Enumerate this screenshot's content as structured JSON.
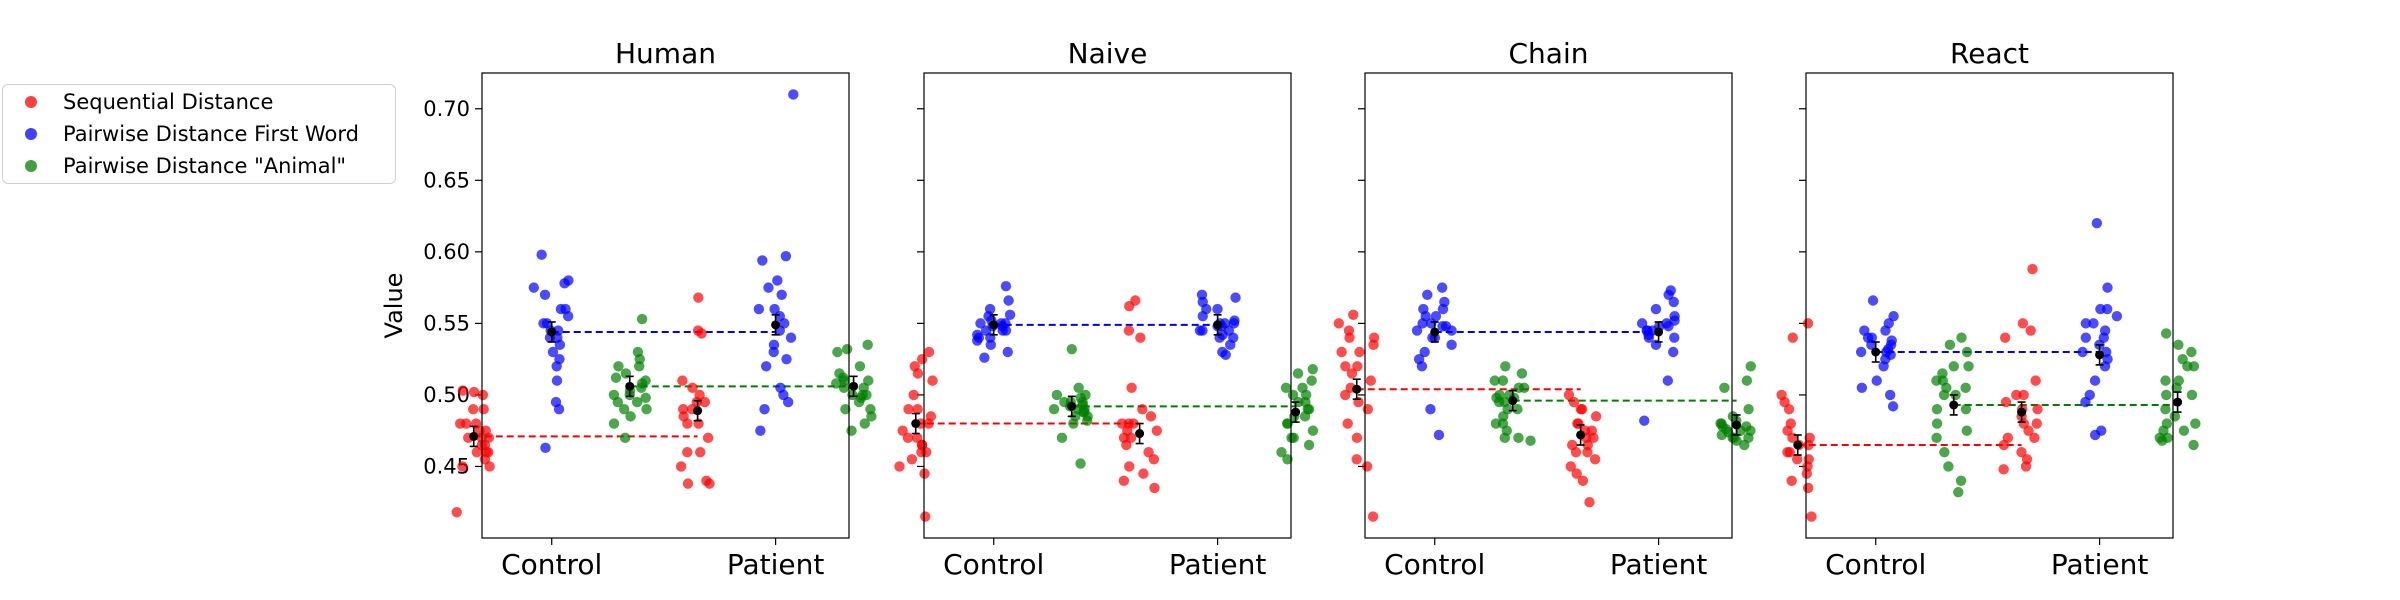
{
  "chart_data": [
    {
      "type": "scatter",
      "title": "Human",
      "ylabel": "Value",
      "categories": [
        "Control",
        "Patient"
      ],
      "ylim": [
        0.4,
        0.725
      ],
      "yticks": [
        "0.45",
        "0.50",
        "0.55",
        "0.60",
        "0.65",
        "0.70"
      ],
      "series": [
        {
          "name": "Sequential Distance",
          "color": "#ff0000",
          "values": [
            [
              0.5,
              0.503,
              0.48,
              0.49,
              0.47,
              0.46,
              0.475,
              0.455,
              0.465,
              0.45,
              0.46,
              0.48,
              0.47,
              0.418,
              0.45,
              0.47,
              0.48,
              0.465,
              0.49,
              0.502,
              0.46,
              0.475
            ],
            [
              0.568,
              0.543,
              0.545,
              0.51,
              0.505,
              0.49,
              0.48,
              0.495,
              0.485,
              0.47,
              0.46,
              0.45,
              0.44,
              0.438,
              0.438,
              0.46,
              0.5,
              0.49,
              0.495,
              0.48
            ]
          ]
        },
        {
          "name": "Pairwise Distance First Word",
          "color": "#0000ff",
          "values": [
            [
              0.598,
              0.58,
              0.575,
              0.57,
              0.56,
              0.555,
              0.55,
              0.545,
              0.54,
              0.535,
              0.53,
              0.525,
              0.51,
              0.495,
              0.49,
              0.463,
              0.54,
              0.55,
              0.56,
              0.578,
              0.545,
              0.52
            ],
            [
              0.71,
              0.597,
              0.594,
              0.58,
              0.575,
              0.57,
              0.56,
              0.55,
              0.54,
              0.535,
              0.53,
              0.525,
              0.52,
              0.505,
              0.5,
              0.495,
              0.49,
              0.475,
              0.56,
              0.545,
              0.555
            ]
          ]
        },
        {
          "name": "Pairwise Distance \"Animal\"",
          "color": "#008000",
          "values": [
            [
              0.553,
              0.53,
              0.525,
              0.52,
              0.515,
              0.51,
              0.505,
              0.5,
              0.495,
              0.49,
              0.485,
              0.48,
              0.47,
              0.498,
              0.503,
              0.512,
              0.508,
              0.52,
              0.495,
              0.5,
              0.49
            ],
            [
              0.535,
              0.532,
              0.53,
              0.52,
              0.515,
              0.51,
              0.505,
              0.5,
              0.495,
              0.49,
              0.485,
              0.48,
              0.475,
              0.5,
              0.508,
              0.512,
              0.49,
              0.5,
              0.505,
              0.51,
              0.498
            ]
          ]
        }
      ],
      "means": [
        [
          0.471,
          0.489
        ],
        [
          0.544,
          0.549
        ],
        [
          0.506,
          0.506
        ]
      ],
      "reference_lines": [
        0.471,
        0.544,
        0.506
      ]
    },
    {
      "type": "scatter",
      "title": "Naive",
      "ylabel": "",
      "categories": [
        "Control",
        "Patient"
      ],
      "ylim": [
        0.4,
        0.725
      ],
      "series": [
        {
          "name": "Sequential Distance",
          "color": "#ff0000",
          "values": [
            [
              0.53,
              0.525,
              0.52,
              0.515,
              0.51,
              0.5,
              0.49,
              0.485,
              0.48,
              0.475,
              0.47,
              0.465,
              0.46,
              0.455,
              0.45,
              0.445,
              0.415,
              0.48,
              0.49,
              0.47,
              0.465,
              0.46
            ],
            [
              0.566,
              0.562,
              0.545,
              0.54,
              0.505,
              0.49,
              0.485,
              0.48,
              0.475,
              0.47,
              0.465,
              0.46,
              0.455,
              0.45,
              0.445,
              0.44,
              0.435,
              0.48,
              0.47,
              0.475,
              0.48
            ]
          ]
        },
        {
          "name": "Pairwise Distance First Word",
          "color": "#0000ff",
          "values": [
            [
              0.576,
              0.566,
              0.56,
              0.555,
              0.55,
              0.548,
              0.545,
              0.542,
              0.54,
              0.538,
              0.535,
              0.53,
              0.526,
              0.55,
              0.556,
              0.545,
              0.548,
              0.552,
              0.54,
              0.55,
              0.545
            ],
            [
              0.57,
              0.568,
              0.565,
              0.56,
              0.555,
              0.55,
              0.548,
              0.545,
              0.542,
              0.54,
              0.535,
              0.53,
              0.528,
              0.55,
              0.545,
              0.56,
              0.552,
              0.548,
              0.54,
              0.545,
              0.55
            ]
          ]
        },
        {
          "name": "Pairwise Distance \"Animal\"",
          "color": "#008000",
          "values": [
            [
              0.532,
              0.505,
              0.5,
              0.498,
              0.495,
              0.493,
              0.49,
              0.488,
              0.485,
              0.482,
              0.48,
              0.47,
              0.452,
              0.495,
              0.49,
              0.5,
              0.485,
              0.492,
              0.488,
              0.49,
              0.495
            ],
            [
              0.518,
              0.515,
              0.51,
              0.505,
              0.5,
              0.495,
              0.49,
              0.485,
              0.48,
              0.475,
              0.47,
              0.465,
              0.46,
              0.455,
              0.5,
              0.49,
              0.485,
              0.48,
              0.47,
              0.495,
              0.505
            ]
          ]
        }
      ],
      "means": [
        [
          0.48,
          0.473
        ],
        [
          0.549,
          0.549
        ],
        [
          0.492,
          0.488
        ]
      ],
      "reference_lines": [
        0.48,
        0.549,
        0.492
      ]
    },
    {
      "type": "scatter",
      "title": "Chain",
      "ylabel": "",
      "categories": [
        "Control",
        "Patient"
      ],
      "ylim": [
        0.4,
        0.725
      ],
      "series": [
        {
          "name": "Sequential Distance",
          "color": "#ff0000",
          "values": [
            [
              0.556,
              0.55,
              0.545,
              0.54,
              0.535,
              0.53,
              0.52,
              0.51,
              0.5,
              0.49,
              0.48,
              0.47,
              0.455,
              0.45,
              0.415,
              0.52,
              0.515,
              0.505,
              0.53,
              0.54,
              0.495
            ],
            [
              0.5,
              0.495,
              0.49,
              0.485,
              0.48,
              0.475,
              0.47,
              0.465,
              0.46,
              0.455,
              0.45,
              0.445,
              0.44,
              0.425,
              0.48,
              0.47,
              0.475,
              0.46,
              0.49,
              0.465
            ]
          ]
        },
        {
          "name": "Pairwise Distance First Word",
          "color": "#0000ff",
          "values": [
            [
              0.575,
              0.57,
              0.565,
              0.56,
              0.555,
              0.55,
              0.548,
              0.545,
              0.54,
              0.535,
              0.53,
              0.525,
              0.52,
              0.49,
              0.472,
              0.545,
              0.55,
              0.56,
              0.54,
              0.548,
              0.555
            ],
            [
              0.573,
              0.57,
              0.565,
              0.56,
              0.555,
              0.55,
              0.548,
              0.545,
              0.542,
              0.54,
              0.535,
              0.53,
              0.51,
              0.482,
              0.55,
              0.545,
              0.54,
              0.548,
              0.552,
              0.545
            ]
          ]
        },
        {
          "name": "Pairwise Distance \"Animal\"",
          "color": "#008000",
          "values": [
            [
              0.52,
              0.515,
              0.51,
              0.505,
              0.5,
              0.498,
              0.495,
              0.49,
              0.485,
              0.48,
              0.475,
              0.47,
              0.468,
              0.5,
              0.495,
              0.505,
              0.51,
              0.49,
              0.498,
              0.47,
              0.48
            ],
            [
              0.52,
              0.51,
              0.505,
              0.49,
              0.485,
              0.48,
              0.478,
              0.475,
              0.472,
              0.47,
              0.468,
              0.465,
              0.48,
              0.475,
              0.47,
              0.478,
              0.482,
              0.476,
              0.474,
              0.47
            ]
          ]
        }
      ],
      "means": [
        [
          0.504,
          0.472
        ],
        [
          0.544,
          0.544
        ],
        [
          0.496,
          0.479
        ]
      ],
      "reference_lines": [
        0.504,
        0.544,
        0.496
      ]
    },
    {
      "type": "scatter",
      "title": "React",
      "ylabel": "",
      "categories": [
        "Control",
        "Patient"
      ],
      "ylim": [
        0.4,
        0.725
      ],
      "series": [
        {
          "name": "Sequential Distance",
          "color": "#ff0000",
          "values": [
            [
              0.55,
              0.54,
              0.5,
              0.495,
              0.49,
              0.475,
              0.47,
              0.465,
              0.46,
              0.455,
              0.45,
              0.445,
              0.44,
              0.435,
              0.415,
              0.47,
              0.46,
              0.48,
              0.455,
              0.465
            ],
            [
              0.588,
              0.55,
              0.545,
              0.54,
              0.51,
              0.5,
              0.495,
              0.49,
              0.485,
              0.48,
              0.475,
              0.47,
              0.465,
              0.46,
              0.455,
              0.45,
              0.448,
              0.49,
              0.48,
              0.47,
              0.5
            ]
          ]
        },
        {
          "name": "Pairwise Distance First Word",
          "color": "#0000ff",
          "values": [
            [
              0.566,
              0.555,
              0.55,
              0.545,
              0.54,
              0.535,
              0.532,
              0.53,
              0.528,
              0.525,
              0.52,
              0.51,
              0.505,
              0.5,
              0.492,
              0.54,
              0.535,
              0.53,
              0.545,
              0.538
            ],
            [
              0.62,
              0.575,
              0.56,
              0.555,
              0.55,
              0.545,
              0.54,
              0.535,
              0.53,
              0.525,
              0.52,
              0.51,
              0.5,
              0.495,
              0.475,
              0.472,
              0.55,
              0.54,
              0.53,
              0.56
            ]
          ]
        },
        {
          "name": "Pairwise Distance \"Animal\"",
          "color": "#008000",
          "values": [
            [
              0.54,
              0.535,
              0.53,
              0.52,
              0.515,
              0.51,
              0.505,
              0.5,
              0.49,
              0.48,
              0.47,
              0.46,
              0.45,
              0.44,
              0.432,
              0.51,
              0.5,
              0.52,
              0.49,
              0.505,
              0.475
            ],
            [
              0.543,
              0.535,
              0.53,
              0.525,
              0.52,
              0.51,
              0.505,
              0.5,
              0.49,
              0.48,
              0.475,
              0.47,
              0.468,
              0.465,
              0.47,
              0.475,
              0.48,
              0.5,
              0.51,
              0.52,
              0.485
            ]
          ]
        }
      ],
      "means": [
        [
          0.465,
          0.488
        ],
        [
          0.53,
          0.528
        ],
        [
          0.493,
          0.495
        ]
      ],
      "reference_lines": [
        0.465,
        0.53,
        0.493
      ]
    }
  ],
  "legend": {
    "placement": "outside-left",
    "items": [
      {
        "label": "Sequential Distance",
        "color": "#ff0000"
      },
      {
        "label": "Pairwise Distance First Word",
        "color": "#0000ff"
      },
      {
        "label": "Pairwise Distance \"Animal\"",
        "color": "#008000"
      }
    ]
  }
}
